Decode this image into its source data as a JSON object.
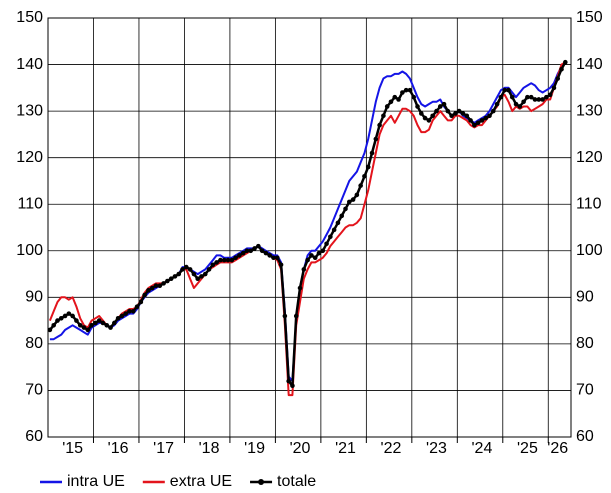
{
  "chart_data": {
    "type": "line",
    "categories": [
      null,
      null,
      null,
      null,
      null,
      null,
      "'15",
      null,
      null,
      null,
      null,
      null,
      null,
      null,
      null,
      null,
      null,
      null,
      "'16",
      null,
      null,
      null,
      null,
      null,
      null,
      null,
      null,
      null,
      null,
      null,
      "'17",
      null,
      null,
      null,
      null,
      null,
      null,
      null,
      null,
      null,
      null,
      null,
      "'18",
      null,
      null,
      null,
      null,
      null,
      null,
      null,
      null,
      null,
      null,
      null,
      "'19",
      null,
      null,
      null,
      null,
      null,
      null,
      null,
      null,
      null,
      null,
      null,
      "'20",
      null,
      null,
      null,
      null,
      null,
      null,
      null,
      null,
      null,
      null,
      null,
      "'21",
      null,
      null,
      null,
      null,
      null,
      null,
      null,
      null,
      null,
      null,
      null,
      "'22",
      null,
      null,
      null,
      null,
      null,
      null,
      null,
      null,
      null,
      null,
      null,
      "'23",
      null,
      null,
      null,
      null,
      null,
      null,
      null,
      null,
      null,
      null,
      null,
      "'24",
      null,
      null,
      null,
      null,
      null,
      null,
      null,
      null,
      null,
      null,
      null,
      "'25",
      null,
      null,
      null,
      null,
      null,
      null,
      null,
      "'26",
      null,
      null
    ],
    "series": [
      {
        "name": "intra UE",
        "color": "#1414e6",
        "markers": false,
        "values": [
          81,
          81,
          81.5,
          82,
          83,
          83.5,
          84,
          83.5,
          83,
          82.5,
          82,
          83.5,
          84,
          84.5,
          84.5,
          84,
          83.5,
          84,
          85,
          85.5,
          86,
          86.5,
          86.5,
          87.5,
          89,
          90,
          91,
          91.5,
          92,
          92.5,
          93,
          93.5,
          94,
          94.5,
          95,
          96.5,
          96.5,
          96,
          95.5,
          95,
          95.5,
          96,
          97,
          98,
          99,
          99,
          98.5,
          98.5,
          98.5,
          99,
          99.5,
          100,
          100.5,
          100.5,
          100.5,
          101,
          100.5,
          100,
          99.5,
          99,
          99,
          97.5,
          87,
          73,
          72,
          85,
          92,
          96,
          99,
          100,
          100,
          101,
          102,
          103.5,
          105,
          107,
          109,
          111,
          113,
          115,
          116,
          117,
          119,
          121,
          124,
          128,
          132,
          135,
          137,
          137.5,
          137.5,
          138,
          138,
          138.5,
          138,
          137,
          135,
          133,
          131.5,
          131,
          131.5,
          132,
          132,
          132.5,
          131,
          130,
          129,
          129.5,
          130,
          129,
          128.5,
          128,
          127.5,
          128,
          128.5,
          129,
          130,
          131.5,
          133,
          134.5,
          135,
          135,
          134,
          133,
          134,
          135,
          135.5,
          136,
          135.5,
          134.5,
          134,
          134.5,
          135,
          136,
          138,
          139.5,
          140.5
        ]
      },
      {
        "name": "extra UE",
        "color": "#e3141c",
        "markers": false,
        "values": [
          85,
          87,
          89,
          90,
          90,
          89.5,
          90,
          88,
          85.5,
          84,
          83.5,
          85,
          85.5,
          86,
          85,
          84,
          83.5,
          84.5,
          85.5,
          86.5,
          87,
          87.5,
          87.5,
          88,
          89.5,
          91,
          92,
          92.5,
          93,
          93,
          93,
          93.5,
          94,
          94.5,
          95,
          96,
          96,
          94,
          92,
          93,
          94,
          95,
          96,
          96.5,
          97,
          97.5,
          97.5,
          97.5,
          97.5,
          98,
          98.5,
          99,
          99.5,
          100,
          100.5,
          101,
          100,
          99.5,
          99,
          98.5,
          98,
          96,
          84,
          69,
          69,
          84,
          89,
          94,
          96,
          97.5,
          97.5,
          98,
          98.5,
          99.5,
          101,
          102,
          103,
          104,
          105,
          105.5,
          105.5,
          106,
          107,
          110,
          113,
          117,
          121,
          125,
          127,
          128,
          129,
          127.5,
          129,
          130.5,
          130.5,
          130,
          129,
          127,
          125.5,
          125.5,
          126,
          128,
          129,
          130,
          129,
          128,
          128,
          129,
          129,
          128.5,
          128,
          127,
          126.5,
          127,
          127,
          128,
          129,
          130,
          131,
          133,
          133.5,
          132,
          130,
          131,
          130.5,
          131,
          131,
          130,
          130.5,
          131,
          131.5,
          132.5,
          132.5,
          135,
          137.5,
          140,
          140.5
        ]
      },
      {
        "name": "totale",
        "color": "#000000",
        "markers": true,
        "values": [
          83,
          84,
          85,
          85.5,
          86,
          86.5,
          86,
          85,
          84,
          83.5,
          83,
          84,
          84.5,
          85,
          84.5,
          84,
          83.5,
          84.5,
          85.5,
          86,
          86.5,
          87,
          87,
          88,
          89,
          90.5,
          91.5,
          92,
          92.5,
          92.5,
          93,
          93.5,
          94,
          94.5,
          95,
          96,
          96.5,
          96,
          95,
          94,
          94.5,
          95,
          96,
          97,
          97.5,
          98,
          98,
          98,
          98,
          98.5,
          99,
          99.5,
          100,
          100,
          100.5,
          101,
          100,
          99.5,
          99,
          98.5,
          98.5,
          97,
          86,
          72,
          71,
          86,
          92,
          96,
          98,
          99,
          98.5,
          99.5,
          100,
          101.5,
          103,
          104.5,
          106,
          107.5,
          109,
          110.5,
          111,
          112,
          114,
          116,
          118,
          121,
          124,
          127,
          129,
          131,
          132,
          133,
          132.5,
          134,
          134.5,
          134.5,
          133,
          131,
          129.5,
          128.5,
          128,
          129,
          130,
          131,
          131.5,
          130,
          129,
          129.5,
          130,
          129.5,
          129,
          128,
          127,
          127.5,
          128,
          128.5,
          129,
          130,
          131.5,
          133,
          134.5,
          134.5,
          133,
          131.5,
          131,
          132,
          133,
          133,
          132.5,
          132.5,
          132.5,
          133,
          133.5,
          135,
          137,
          139,
          140.5
        ]
      }
    ],
    "ylim": [
      60,
      150
    ],
    "yticks": [
      60,
      70,
      80,
      90,
      100,
      110,
      120,
      130,
      140,
      150
    ],
    "grid": true,
    "legend": "bottom"
  }
}
